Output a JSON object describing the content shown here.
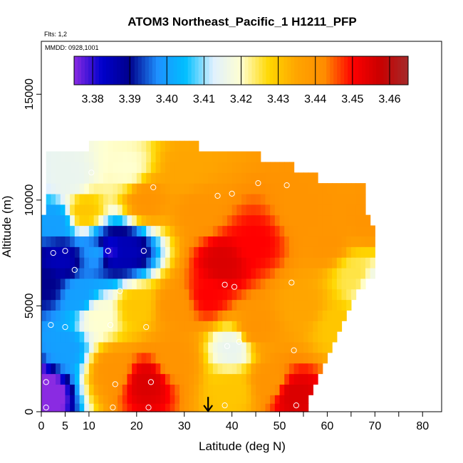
{
  "chart_data": {
    "type": "heatmap",
    "title": "ATOM3 Northeast_Pacific_1 H1211_PFP",
    "flights_label": "Flts: 1,2",
    "dates_label": "MMDD: 0928,1001",
    "xlabel": "Latitude (deg N)",
    "ylabel": "Altitude (m)",
    "xlim": [
      0,
      84
    ],
    "ylim": [
      0,
      17500
    ],
    "x_ticks": [
      0,
      5,
      10,
      20,
      30,
      40,
      50,
      60,
      70,
      80
    ],
    "x_tick_labels": [
      "0",
      "5",
      "10",
      "20",
      "30",
      "40",
      "50",
      "60",
      "70",
      "80"
    ],
    "x_minor_ticks": [
      45,
      55,
      65,
      75,
      85
    ],
    "y_ticks": [
      0,
      5000,
      10000,
      15000
    ],
    "y_tick_labels": [
      "0",
      "5000",
      "10000",
      "15000"
    ],
    "colorbar": {
      "min": 3.375,
      "max": 3.465,
      "tick_values": [
        3.38,
        3.39,
        3.4,
        3.41,
        3.42,
        3.43,
        3.44,
        3.45,
        3.46
      ],
      "tick_labels": [
        "3.38",
        "3.39",
        "3.40",
        "3.41",
        "3.42",
        "3.43",
        "3.44",
        "3.45",
        "3.46"
      ],
      "colors": [
        "#8a2be2",
        "#0000cd",
        "#00008b",
        "#1e90ff",
        "#00bfff",
        "#e0f0ff",
        "#ffffd0",
        "#ffd700",
        "#ffa500",
        "#ff8c00",
        "#ff0000",
        "#c80000",
        "#a52a2a"
      ]
    },
    "level_alt": [
      0,
      400,
      800,
      1300,
      1800,
      2300,
      2800,
      3300,
      3800,
      4300,
      4800,
      5300,
      5800,
      6300,
      6800,
      7300,
      7800,
      8300,
      8800,
      9300,
      9800,
      10300,
      10800,
      11300,
      11800,
      12300
    ],
    "level_lat_min": [
      0,
      0,
      0,
      0,
      0,
      0,
      0,
      0,
      0,
      0,
      0,
      0,
      0,
      0,
      0,
      0,
      0,
      0,
      0,
      1,
      1,
      1,
      1,
      1,
      1,
      10
    ],
    "level_lat_max": [
      56,
      56,
      57,
      58,
      59,
      60,
      61,
      62,
      63,
      64,
      65,
      66,
      68,
      70,
      70,
      70,
      70,
      70,
      69,
      68,
      68,
      68,
      58,
      53,
      46,
      33
    ],
    "field_anchors": [
      {
        "lat": 0,
        "alt": 1000,
        "value": 3.37
      },
      {
        "lat": 1,
        "alt": 6000,
        "value": 3.39
      },
      {
        "lat": 3,
        "alt": 9000,
        "value": 3.4
      },
      {
        "lat": 4,
        "alt": 7200,
        "value": 3.385
      },
      {
        "lat": 5,
        "alt": 3000,
        "value": 3.4
      },
      {
        "lat": 6,
        "alt": 11000,
        "value": 3.415
      },
      {
        "lat": 8,
        "alt": 5500,
        "value": 3.4
      },
      {
        "lat": 9,
        "alt": 9500,
        "value": 3.43
      },
      {
        "lat": 12,
        "alt": 7500,
        "value": 3.4
      },
      {
        "lat": 14,
        "alt": 7600,
        "value": 3.38
      },
      {
        "lat": 18,
        "alt": 7600,
        "value": 3.385
      },
      {
        "lat": 12,
        "alt": 4500,
        "value": 3.42
      },
      {
        "lat": 15,
        "alt": 2000,
        "value": 3.44
      },
      {
        "lat": 22,
        "alt": 1400,
        "value": 3.455
      },
      {
        "lat": 28,
        "alt": 2500,
        "value": 3.44
      },
      {
        "lat": 20,
        "alt": 5000,
        "value": 3.43
      },
      {
        "lat": 28,
        "alt": 5000,
        "value": 3.44
      },
      {
        "lat": 22,
        "alt": 10000,
        "value": 3.44
      },
      {
        "lat": 18,
        "alt": 11500,
        "value": 3.42
      },
      {
        "lat": 30,
        "alt": 11500,
        "value": 3.435
      },
      {
        "lat": 33,
        "alt": 9500,
        "value": 3.44
      },
      {
        "lat": 38,
        "alt": 7000,
        "value": 3.455
      },
      {
        "lat": 35,
        "alt": 5500,
        "value": 3.45
      },
      {
        "lat": 40,
        "alt": 3000,
        "value": 3.415
      },
      {
        "lat": 40,
        "alt": 1000,
        "value": 3.43
      },
      {
        "lat": 45,
        "alt": 8000,
        "value": 3.45
      },
      {
        "lat": 45,
        "alt": 4000,
        "value": 3.44
      },
      {
        "lat": 48,
        "alt": 1500,
        "value": 3.44
      },
      {
        "lat": 53,
        "alt": 800,
        "value": 3.455
      },
      {
        "lat": 55,
        "alt": 5000,
        "value": 3.435
      },
      {
        "lat": 55,
        "alt": 9500,
        "value": 3.44
      },
      {
        "lat": 60,
        "alt": 8000,
        "value": 3.44
      },
      {
        "lat": 62,
        "alt": 4000,
        "value": 3.43
      },
      {
        "lat": 66,
        "alt": 6500,
        "value": 3.425
      },
      {
        "lat": 68,
        "alt": 9000,
        "value": 3.44
      },
      {
        "lat": 70,
        "alt": 6000,
        "value": 3.415
      }
    ],
    "sample_points": [
      {
        "lat": 1,
        "alt": 1400
      },
      {
        "lat": 1,
        "alt": 200
      },
      {
        "lat": 2,
        "alt": 4100
      },
      {
        "lat": 2.5,
        "alt": 7500
      },
      {
        "lat": 5,
        "alt": 7600
      },
      {
        "lat": 5,
        "alt": 4000
      },
      {
        "lat": 7,
        "alt": 6700
      },
      {
        "lat": 10.5,
        "alt": 11300
      },
      {
        "lat": 14,
        "alt": 7600
      },
      {
        "lat": 14.5,
        "alt": 4100
      },
      {
        "lat": 15.5,
        "alt": 1300
      },
      {
        "lat": 15,
        "alt": 200
      },
      {
        "lat": 16.5,
        "alt": 5700
      },
      {
        "lat": 21.5,
        "alt": 7600
      },
      {
        "lat": 22,
        "alt": 4000
      },
      {
        "lat": 22.5,
        "alt": 200
      },
      {
        "lat": 23,
        "alt": 1400
      },
      {
        "lat": 23.5,
        "alt": 10600
      },
      {
        "lat": 37,
        "alt": 10200
      },
      {
        "lat": 38.5,
        "alt": 6000
      },
      {
        "lat": 39,
        "alt": 3100
      },
      {
        "lat": 38.5,
        "alt": 300
      },
      {
        "lat": 40,
        "alt": 10300
      },
      {
        "lat": 40.5,
        "alt": 5900
      },
      {
        "lat": 41.5,
        "alt": 3300
      },
      {
        "lat": 45.5,
        "alt": 10800
      },
      {
        "lat": 51.5,
        "alt": 10700
      },
      {
        "lat": 52.5,
        "alt": 6100
      },
      {
        "lat": 53,
        "alt": 2900
      },
      {
        "lat": 53.5,
        "alt": 300
      },
      {
        "lat": 59,
        "alt": 11000
      },
      {
        "lat": 69,
        "alt": 10900
      }
    ],
    "markers": [
      {
        "type": "arrow-down",
        "lat": 35,
        "alt_top": 700,
        "alt_bottom": 0
      }
    ]
  }
}
